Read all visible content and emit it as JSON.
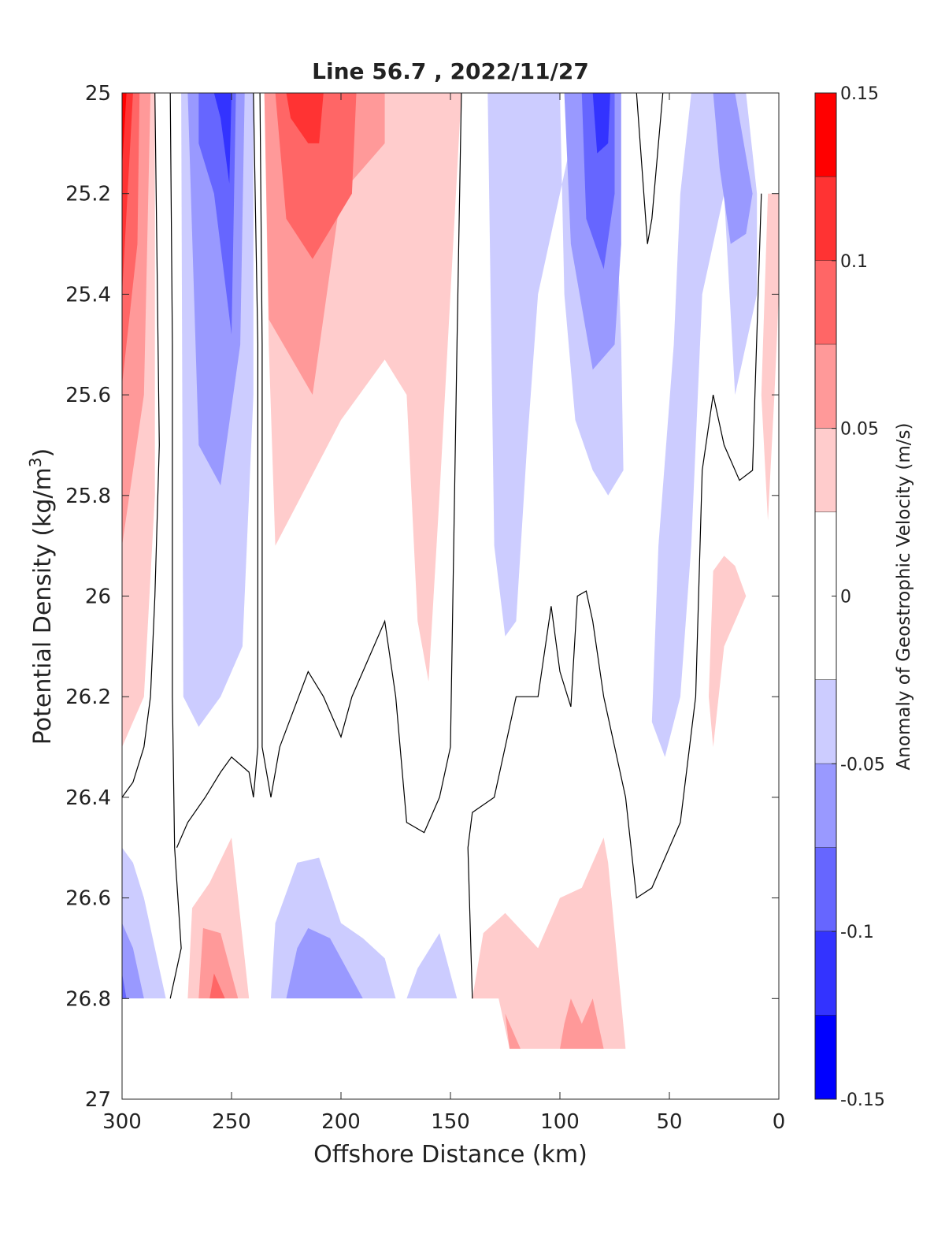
{
  "chart_data": {
    "type": "contour",
    "title": "Line 56.7 , 2022/11/27",
    "xlabel": "Offshore Distance (km)",
    "ylabel_main": "Potential Density (kg/m",
    "ylabel_sup": "3",
    "ylabel_close": ")",
    "xlim": [
      300,
      0
    ],
    "ylim": [
      25,
      27
    ],
    "xticks": [
      300,
      250,
      200,
      150,
      100,
      50,
      0
    ],
    "yticks": [
      25,
      25.2,
      25.4,
      25.6,
      25.8,
      26,
      26.2,
      26.4,
      26.6,
      26.8,
      27
    ],
    "ytick_labels": [
      "25",
      "25.2",
      "25.4",
      "25.6",
      "25.8",
      "26",
      "26.2",
      "26.4",
      "26.6",
      "26.8",
      "27"
    ],
    "data_bottom_boundary": [
      {
        "x": 300,
        "y": 26.8
      },
      {
        "x": 145,
        "y": 26.8
      },
      {
        "x": 145,
        "y": 26.9
      },
      {
        "x": 70,
        "y": 26.9
      },
      {
        "x": 70,
        "y": 26.8
      },
      {
        "x": 0,
        "y": 26.8
      }
    ],
    "colorbar": {
      "label": "Anomaly of Geostrophic Velocity (m/s)",
      "range": [
        -0.15,
        0.15
      ],
      "ticks": [
        0.15,
        0.1,
        0.05,
        0,
        -0.05,
        -0.1,
        -0.15
      ],
      "tick_labels": [
        "0.15",
        "0.1",
        "0.05",
        "0",
        "-0.05",
        "-0.1",
        "-0.15"
      ],
      "bands": [
        {
          "from": 0.125,
          "to": 0.15,
          "color": "#ff0000"
        },
        {
          "from": 0.1,
          "to": 0.125,
          "color": "#ff3333"
        },
        {
          "from": 0.075,
          "to": 0.1,
          "color": "#ff6666"
        },
        {
          "from": 0.05,
          "to": 0.075,
          "color": "#ff9999"
        },
        {
          "from": 0.025,
          "to": 0.05,
          "color": "#ffcccc"
        },
        {
          "from": -0.025,
          "to": 0.025,
          "color": "#ffffff"
        },
        {
          "from": -0.05,
          "to": -0.025,
          "color": "#ccccff"
        },
        {
          "from": -0.075,
          "to": -0.05,
          "color": "#9999ff"
        },
        {
          "from": -0.1,
          "to": -0.075,
          "color": "#6666ff"
        },
        {
          "from": -0.125,
          "to": -0.1,
          "color": "#3333ff"
        },
        {
          "from": -0.15,
          "to": -0.125,
          "color": "#0000ff"
        }
      ]
    },
    "regions": [
      {
        "v": 0.0375,
        "pts": [
          [
            300,
            25
          ],
          [
            285,
            25
          ],
          [
            285,
            25.8
          ],
          [
            290,
            26.2
          ],
          [
            300,
            26.3
          ]
        ]
      },
      {
        "v": 0.0625,
        "pts": [
          [
            300,
            25
          ],
          [
            287,
            25
          ],
          [
            290,
            25.6
          ],
          [
            300,
            25.9
          ]
        ]
      },
      {
        "v": 0.0875,
        "pts": [
          [
            300,
            25
          ],
          [
            292,
            25
          ],
          [
            293,
            25.3
          ],
          [
            300,
            25.58
          ]
        ]
      },
      {
        "v": 0.1125,
        "pts": [
          [
            300,
            25
          ],
          [
            295,
            25
          ],
          [
            300,
            25.4
          ]
        ]
      },
      {
        "v": 0.1375,
        "pts": [
          [
            300,
            25
          ],
          [
            298,
            25
          ],
          [
            300,
            25.15
          ]
        ]
      },
      {
        "v": -0.0375,
        "pts": [
          [
            273,
            25
          ],
          [
            240,
            25
          ],
          [
            240,
            25.6
          ],
          [
            245,
            26.1
          ],
          [
            255,
            26.2
          ],
          [
            265,
            26.26
          ],
          [
            272,
            26.2
          ]
        ]
      },
      {
        "v": -0.0625,
        "pts": [
          [
            270,
            25
          ],
          [
            244,
            25
          ],
          [
            246,
            25.5
          ],
          [
            255,
            25.78
          ],
          [
            265,
            25.7
          ]
        ]
      },
      {
        "v": -0.0875,
        "pts": [
          [
            265,
            25
          ],
          [
            248,
            25
          ],
          [
            250,
            25.48
          ],
          [
            258,
            25.2
          ],
          [
            265,
            25.1
          ]
        ]
      },
      {
        "v": -0.1125,
        "pts": [
          [
            258,
            25
          ],
          [
            250,
            25
          ],
          [
            251,
            25.18
          ],
          [
            255,
            25.05
          ]
        ]
      },
      {
        "v": 0.0375,
        "pts": [
          [
            235,
            25
          ],
          [
            145,
            25
          ],
          [
            155,
            25.8
          ],
          [
            160,
            26.17
          ],
          [
            165,
            26.05
          ],
          [
            170,
            25.6
          ],
          [
            180,
            25.53
          ],
          [
            200,
            25.65
          ],
          [
            230,
            25.9
          ],
          [
            233,
            25.5
          ]
        ]
      },
      {
        "v": 0.0625,
        "pts": [
          [
            235,
            25
          ],
          [
            180,
            25
          ],
          [
            180,
            25.1
          ],
          [
            200,
            25.2
          ],
          [
            213,
            25.6
          ],
          [
            233,
            25.45
          ]
        ]
      },
      {
        "v": 0.0875,
        "pts": [
          [
            230,
            25
          ],
          [
            193,
            25
          ],
          [
            195,
            25.2
          ],
          [
            213,
            25.33
          ],
          [
            225,
            25.25
          ]
        ]
      },
      {
        "v": 0.1125,
        "pts": [
          [
            225,
            25
          ],
          [
            208,
            25
          ],
          [
            210,
            25.1
          ],
          [
            215,
            25.1
          ],
          [
            223,
            25.05
          ]
        ]
      },
      {
        "v": -0.0375,
        "pts": [
          [
            133,
            25
          ],
          [
            100,
            25
          ],
          [
            98,
            25.4
          ],
          [
            93,
            25.65
          ],
          [
            85,
            25.75
          ],
          [
            78,
            25.8
          ],
          [
            71,
            25.75
          ],
          [
            72,
            25.5
          ],
          [
            75,
            25.1
          ],
          [
            78,
            25
          ],
          [
            90,
            25
          ],
          [
            100,
            25.2
          ],
          [
            110,
            25.4
          ],
          [
            115,
            25.7
          ],
          [
            120,
            26.05
          ],
          [
            125,
            26.08
          ],
          [
            130,
            25.9
          ]
        ]
      },
      {
        "v": -0.0625,
        "pts": [
          [
            98,
            25
          ],
          [
            72,
            25
          ],
          [
            72,
            25.3
          ],
          [
            75,
            25.5
          ],
          [
            85,
            25.55
          ],
          [
            95,
            25.3
          ]
        ]
      },
      {
        "v": -0.0875,
        "pts": [
          [
            90,
            25
          ],
          [
            75,
            25
          ],
          [
            75,
            25.2
          ],
          [
            80,
            25.35
          ],
          [
            88,
            25.25
          ]
        ]
      },
      {
        "v": -0.1125,
        "pts": [
          [
            85,
            25
          ],
          [
            77,
            25
          ],
          [
            78,
            25.1
          ],
          [
            83,
            25.12
          ]
        ]
      },
      {
        "v": -0.0375,
        "pts": [
          [
            40,
            25
          ],
          [
            15,
            25
          ],
          [
            10,
            25.2
          ],
          [
            10,
            25.4
          ],
          [
            20,
            25.6
          ],
          [
            25,
            25.2
          ],
          [
            35,
            25.4
          ],
          [
            40,
            25.9
          ],
          [
            45,
            26.2
          ],
          [
            52,
            26.32
          ],
          [
            58,
            26.25
          ],
          [
            55,
            25.9
          ],
          [
            48,
            25.5
          ],
          [
            45,
            25.2
          ]
        ]
      },
      {
        "v": -0.0625,
        "pts": [
          [
            30,
            25
          ],
          [
            20,
            25
          ],
          [
            12,
            25.2
          ],
          [
            15,
            25.28
          ],
          [
            22,
            25.3
          ],
          [
            27,
            25.15
          ]
        ]
      },
      {
        "v": 0.0375,
        "pts": [
          [
            5,
            25.2
          ],
          [
            0,
            25.2
          ],
          [
            0,
            25.4
          ],
          [
            2,
            25.6
          ],
          [
            5,
            25.85
          ],
          [
            8,
            25.6
          ]
        ]
      },
      {
        "v": 0.0375,
        "pts": [
          [
            32,
            26.2
          ],
          [
            30,
            26.3
          ],
          [
            25,
            26.1
          ],
          [
            15,
            26
          ],
          [
            20,
            25.94
          ],
          [
            25,
            25.92
          ],
          [
            30,
            25.95
          ]
        ]
      },
      {
        "v": -0.0375,
        "pts": [
          [
            300,
            26.5
          ],
          [
            295,
            26.53
          ],
          [
            290,
            26.6
          ],
          [
            280,
            26.8
          ],
          [
            300,
            26.8
          ]
        ]
      },
      {
        "v": -0.0625,
        "pts": [
          [
            300,
            26.65
          ],
          [
            295,
            26.7
          ],
          [
            290,
            26.8
          ],
          [
            300,
            26.8
          ]
        ]
      },
      {
        "v": -0.0875,
        "pts": [
          [
            300,
            26.75
          ],
          [
            298,
            26.8
          ],
          [
            300,
            26.88
          ]
        ]
      },
      {
        "v": 0.0375,
        "pts": [
          [
            270,
            26.8
          ],
          [
            268,
            26.62
          ],
          [
            260,
            26.57
          ],
          [
            250,
            26.48
          ],
          [
            242,
            26.8
          ]
        ]
      },
      {
        "v": 0.0625,
        "pts": [
          [
            265,
            26.8
          ],
          [
            263,
            26.66
          ],
          [
            255,
            26.67
          ],
          [
            247,
            26.8
          ]
        ]
      },
      {
        "v": 0.0875,
        "pts": [
          [
            260,
            26.8
          ],
          [
            258,
            26.75
          ],
          [
            253,
            26.8
          ]
        ]
      },
      {
        "v": -0.0375,
        "pts": [
          [
            232,
            26.8
          ],
          [
            230,
            26.65
          ],
          [
            220,
            26.53
          ],
          [
            210,
            26.52
          ],
          [
            200,
            26.65
          ],
          [
            190,
            26.68
          ],
          [
            180,
            26.72
          ],
          [
            175,
            26.8
          ]
        ]
      },
      {
        "v": -0.0625,
        "pts": [
          [
            225,
            26.8
          ],
          [
            220,
            26.7
          ],
          [
            215,
            26.66
          ],
          [
            205,
            26.68
          ],
          [
            200,
            26.72
          ],
          [
            190,
            26.8
          ]
        ]
      },
      {
        "v": -0.0375,
        "pts": [
          [
            170,
            26.8
          ],
          [
            165,
            26.74
          ],
          [
            155,
            26.67
          ],
          [
            147,
            26.8
          ]
        ]
      },
      {
        "v": 0.0375,
        "pts": [
          [
            140,
            26.8
          ],
          [
            135,
            26.67
          ],
          [
            125,
            26.63
          ],
          [
            110,
            26.7
          ],
          [
            100,
            26.6
          ],
          [
            90,
            26.58
          ],
          [
            80,
            26.48
          ],
          [
            78,
            26.53
          ],
          [
            70,
            26.9
          ],
          [
            123,
            26.9
          ],
          [
            128,
            26.8
          ]
        ]
      },
      {
        "v": 0.0625,
        "pts": [
          [
            125,
            26.83
          ],
          [
            118,
            26.9
          ],
          [
            120,
            26.9
          ],
          [
            123,
            26.9
          ]
        ]
      },
      {
        "v": 0.0625,
        "pts": [
          [
            100,
            26.9
          ],
          [
            98,
            26.85
          ],
          [
            95,
            26.8
          ],
          [
            90,
            26.85
          ],
          [
            85,
            26.8
          ],
          [
            80,
            26.9
          ]
        ]
      }
    ],
    "zero_contours": [
      [
        [
          285,
          25
        ],
        [
          283,
          25.7
        ],
        [
          285,
          26
        ],
        [
          287,
          26.2
        ],
        [
          290,
          26.3
        ],
        [
          295,
          26.37
        ],
        [
          300,
          26.4
        ]
      ],
      [
        [
          278,
          25
        ],
        [
          277,
          25.5
        ],
        [
          277,
          26.2
        ],
        [
          276,
          26.5
        ],
        [
          273,
          26.7
        ],
        [
          278,
          26.8
        ]
      ],
      [
        [
          240,
          25
        ],
        [
          238,
          25.5
        ],
        [
          238,
          26.3
        ],
        [
          240,
          26.4
        ],
        [
          242,
          26.35
        ],
        [
          250,
          26.32
        ],
        [
          255,
          26.35
        ],
        [
          262,
          26.4
        ],
        [
          270,
          26.45
        ],
        [
          275,
          26.5
        ]
      ],
      [
        [
          237,
          25
        ],
        [
          236,
          25.5
        ],
        [
          236,
          26.3
        ],
        [
          232,
          26.4
        ],
        [
          228,
          26.3
        ],
        [
          215,
          26.15
        ],
        [
          208,
          26.2
        ],
        [
          200,
          26.28
        ],
        [
          195,
          26.2
        ],
        [
          185,
          26.1
        ],
        [
          180,
          26.05
        ],
        [
          175,
          26.2
        ],
        [
          170,
          26.45
        ],
        [
          162,
          26.47
        ],
        [
          155,
          26.4
        ],
        [
          150,
          26.3
        ],
        [
          147,
          25.5
        ],
        [
          145,
          25
        ]
      ],
      [
        [
          140,
          26.8
        ],
        [
          142,
          26.5
        ],
        [
          140,
          26.43
        ],
        [
          130,
          26.4
        ],
        [
          120,
          26.2
        ],
        [
          110,
          26.2
        ],
        [
          104,
          26.02
        ],
        [
          100,
          26.15
        ],
        [
          95,
          26.22
        ],
        [
          92,
          26
        ],
        [
          88,
          25.99
        ],
        [
          85,
          26.05
        ],
        [
          80,
          26.2
        ],
        [
          70,
          26.4
        ],
        [
          65,
          26.6
        ],
        [
          58,
          26.58
        ],
        [
          50,
          26.5
        ],
        [
          45,
          26.45
        ],
        [
          38,
          26.2
        ],
        [
          35,
          25.75
        ],
        [
          30,
          25.6
        ],
        [
          25,
          25.7
        ],
        [
          18,
          25.77
        ],
        [
          12,
          25.75
        ],
        [
          8,
          25.2
        ]
      ],
      [
        [
          65,
          25
        ],
        [
          60,
          25.3
        ],
        [
          58,
          25.25
        ],
        [
          53,
          25
        ]
      ]
    ]
  }
}
